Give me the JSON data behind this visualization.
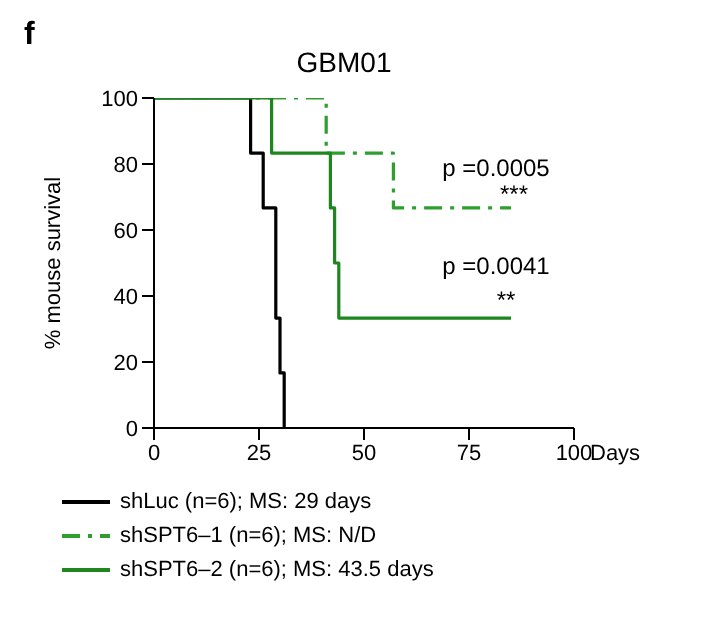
{
  "chart_data": {
    "type": "step",
    "title": "GBM01",
    "xlabel": "Days",
    "ylabel": "% mouse survival",
    "xlim": [
      0,
      100
    ],
    "xticks": [
      0,
      25,
      50,
      75,
      100
    ],
    "ylim": [
      0,
      100
    ],
    "yticks": [
      0,
      20,
      40,
      60,
      80,
      100
    ],
    "legend": "bottom",
    "line_style": "solid",
    "series": [
      {
        "name": "shLuc (n=6); MS: 29 days",
        "color": "#000000",
        "x": [
          0,
          23,
          26,
          29,
          30,
          31
        ],
        "values": [
          100,
          83.3,
          66.7,
          33.3,
          16.7,
          0
        ]
      },
      {
        "name": "shSPT6–1 (n=6); MS: N/D",
        "color": "#2e9e2e",
        "line_style": "dashed",
        "x": [
          0,
          41,
          57,
          85
        ],
        "values": [
          100,
          83.3,
          66.7,
          66.7
        ]
      },
      {
        "name": "shSPT6–2 (n=6); MS: 43.5 days",
        "color": "#1e861e",
        "x": [
          0,
          28,
          42,
          43,
          44,
          85
        ],
        "values": [
          100,
          83.3,
          66.7,
          50,
          33.3,
          33.3
        ]
      }
    ],
    "annotations": [
      "f",
      "p =0.0005",
      "***",
      "p =0.0041",
      "**"
    ]
  }
}
